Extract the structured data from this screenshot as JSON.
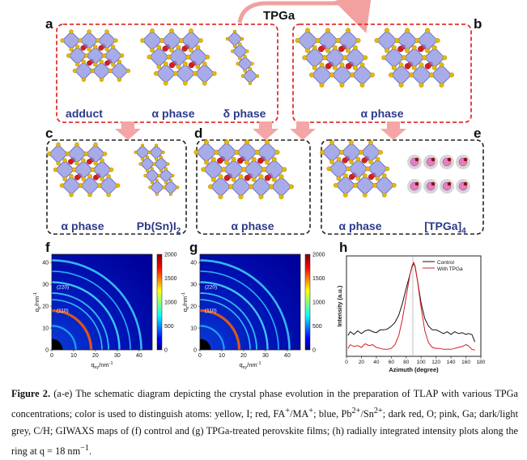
{
  "figure": {
    "tpga_label": "TPGa",
    "panel_letters": {
      "a": "a",
      "b": "b",
      "c": "c",
      "d": "d",
      "e": "e",
      "f": "f",
      "g": "g",
      "h": "h"
    },
    "labels": {
      "adduct": "adduct",
      "alpha_phase": "α phase",
      "delta_phase": "δ phase",
      "pbsni2": "Pb(Sn)I",
      "pbsni2_sub": "2",
      "tpga4": "[TPGa]",
      "tpga4_sub": "4"
    },
    "giwaxs": {
      "ring_labels": [
        "(220)",
        "(110)"
      ],
      "colorbar_ticks": [
        "2000",
        "1500",
        "1000",
        "500",
        "0"
      ],
      "x_ticks": [
        "0",
        "10",
        "20",
        "30",
        "40"
      ],
      "y_ticks": [
        "0",
        "10",
        "20",
        "30",
        "40"
      ],
      "xlabel_main": "q",
      "xlabel_sub": "xy",
      "xlabel_unit": "/nm",
      "ylabel_main": "q",
      "ylabel_sub": "z",
      "ylabel_unit": "/nm",
      "unit_sup": "-1"
    }
  },
  "chart_data": {
    "type": "line",
    "panel": "h",
    "xlabel": "Azimuth (degree)",
    "ylabel": "Intensity (a.u.)",
    "xlim": [
      0,
      180
    ],
    "x_ticks": [
      0,
      20,
      40,
      60,
      80,
      100,
      120,
      140,
      160,
      180
    ],
    "grid": false,
    "legend_position": "top-right",
    "series": [
      {
        "name": "Control",
        "color": "#111111",
        "x": [
          2,
          5,
          10,
          15,
          20,
          25,
          30,
          35,
          40,
          45,
          50,
          55,
          60,
          65,
          70,
          75,
          80,
          85,
          88,
          90,
          92,
          95,
          100,
          105,
          110,
          115,
          120,
          125,
          130,
          135,
          140,
          145,
          150,
          155,
          160,
          163,
          168,
          172
        ],
        "y": [
          0.2,
          0.24,
          0.21,
          0.25,
          0.22,
          0.25,
          0.26,
          0.24,
          0.23,
          0.26,
          0.26,
          0.27,
          0.3,
          0.34,
          0.42,
          0.55,
          0.71,
          0.86,
          0.95,
          0.98,
          0.94,
          0.8,
          0.55,
          0.38,
          0.3,
          0.26,
          0.26,
          0.24,
          0.22,
          0.24,
          0.21,
          0.24,
          0.22,
          0.23,
          0.21,
          0.22,
          0.21,
          0.13
        ]
      },
      {
        "name": "With TPGa",
        "color": "#d42020",
        "x": [
          2,
          5,
          10,
          15,
          20,
          25,
          30,
          35,
          40,
          45,
          50,
          55,
          60,
          65,
          70,
          75,
          80,
          85,
          88,
          90,
          92,
          95,
          100,
          105,
          110,
          115,
          120,
          125,
          130,
          135,
          140,
          145,
          150,
          155,
          160,
          163,
          168,
          172
        ],
        "y": [
          0.06,
          0.1,
          0.08,
          0.09,
          0.07,
          0.11,
          0.09,
          0.1,
          0.07,
          0.06,
          0.05,
          0.05,
          0.06,
          0.1,
          0.2,
          0.38,
          0.62,
          0.86,
          0.96,
          0.99,
          0.95,
          0.8,
          0.5,
          0.25,
          0.12,
          0.07,
          0.06,
          0.06,
          0.05,
          0.05,
          0.05,
          0.06,
          0.07,
          0.08,
          0.1,
          0.09,
          0.05,
          0.04
        ]
      }
    ]
  },
  "caption": {
    "figure_label": "Figure 2",
    "segments": [
      "(a-e) The schematic diagram depicting the crystal phase evolution in the preparation of TLAP with various TPGa concentrations; color is used to distinguish atoms: yellow, I; red, FA",
      "+",
      "/MA",
      "+",
      "; blue, Pb",
      "2+",
      "/Sn",
      "2+",
      "; dark red, O; pink, Ga; dark/light grey, C/H; GIWAXS maps of (f) control and (g) TPGa-treated perovskite films; (h) radially integrated intensity plots along the ring at q = 18 nm",
      "−1",
      "."
    ]
  }
}
